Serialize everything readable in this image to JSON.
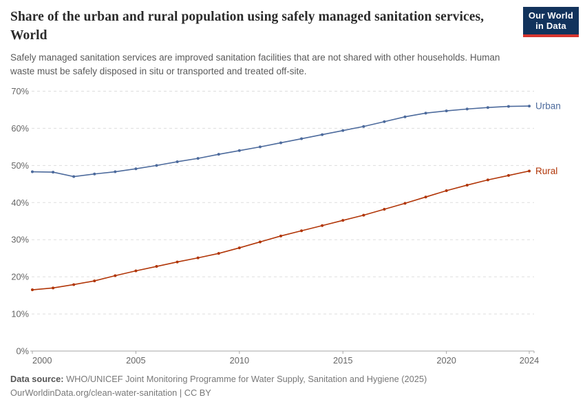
{
  "header": {
    "title": "Share of the urban and rural population using safely managed sanitation services, World",
    "subtitle": "Safely managed sanitation services are improved sanitation facilities that are not shared with other households. Human waste must be safely disposed in situ or transported and treated off-site.",
    "logo_line1": "Our World",
    "logo_line2": "in Data"
  },
  "chart_data": {
    "type": "line",
    "title": "Share of the urban and rural population using safely managed sanitation services, World",
    "x": [
      2000,
      2001,
      2002,
      2003,
      2004,
      2005,
      2006,
      2007,
      2008,
      2009,
      2010,
      2011,
      2012,
      2013,
      2014,
      2015,
      2016,
      2017,
      2018,
      2019,
      2020,
      2021,
      2022,
      2023,
      2024
    ],
    "series": [
      {
        "name": "Urban",
        "color": "#4C6A9C",
        "values": [
          48.3,
          48.2,
          47.0,
          47.7,
          48.3,
          49.1,
          50.0,
          51.0,
          51.9,
          53.0,
          54.0,
          55.0,
          56.1,
          57.2,
          58.3,
          59.4,
          60.5,
          61.8,
          63.1,
          64.1,
          64.7,
          65.2,
          65.6,
          65.9,
          66.0
        ]
      },
      {
        "name": "Rural",
        "color": "#B13507",
        "values": [
          16.5,
          17.0,
          17.9,
          18.9,
          20.3,
          21.6,
          22.8,
          24.0,
          25.1,
          26.3,
          27.8,
          29.4,
          31.0,
          32.4,
          33.8,
          35.2,
          36.6,
          38.2,
          39.8,
          41.5,
          43.2,
          44.7,
          46.1,
          47.3,
          48.5
        ]
      }
    ],
    "xlabel": "",
    "ylabel": "",
    "ylim": [
      0,
      70
    ],
    "yticks": [
      0,
      10,
      20,
      30,
      40,
      50,
      60,
      70
    ],
    "ytick_suffix": "%",
    "xticks": [
      2000,
      2005,
      2010,
      2015,
      2020,
      2024
    ],
    "grid": true,
    "legend_position": "line-end-labels"
  },
  "colors": {
    "grid": "#dddddd",
    "axis": "#a5a5a5",
    "tick_text": "#666666",
    "accent_navy": "#12335c",
    "accent_red": "#d7352e"
  },
  "footer": {
    "datasource_label": "Data source:",
    "datasource": "WHO/UNICEF Joint Monitoring Programme for Water Supply, Sanitation and Hygiene (2025)",
    "url_line": "OurWorldinData.org/clean-water-sanitation | CC BY"
  }
}
